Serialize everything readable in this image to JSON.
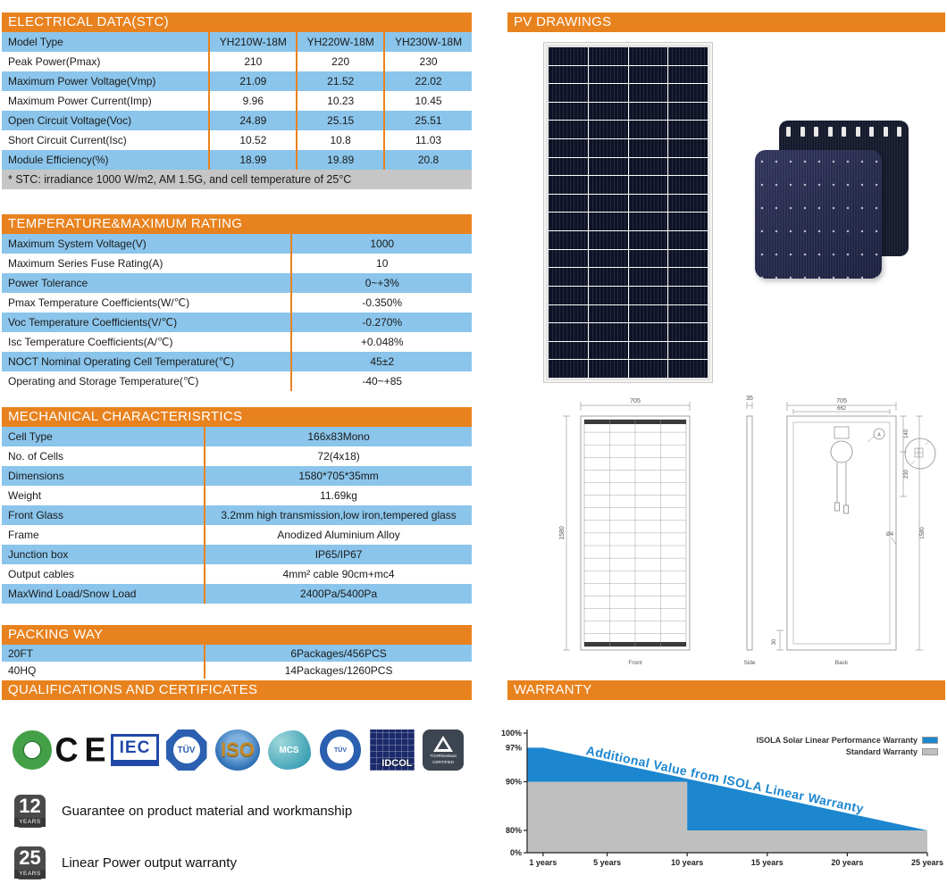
{
  "sections": {
    "electrical": {
      "title": "ELECTRICAL DATA(STC)",
      "rows": [
        [
          "Model Type",
          "YH210W-18M",
          "YH220W-18M",
          "YH230W-18M"
        ],
        [
          "Peak Power(Pmax)",
          "210",
          "220",
          "230"
        ],
        [
          "Maximum Power Voltage(Vmp)",
          "21.09",
          "21.52",
          "22.02"
        ],
        [
          "Maximum Power Current(Imp)",
          "9.96",
          "10.23",
          "10.45"
        ],
        [
          "Open Circuit Voltage(Voc)",
          "24.89",
          "25.15",
          "25.51"
        ],
        [
          "Short Circuit Current(Isc)",
          "10.52",
          "10.8",
          "11.03"
        ],
        [
          "Module Efficiency(%)",
          "18.99",
          "19.89",
          "20.8"
        ]
      ],
      "note": "* STC:  irradiance 1000 W/m2, AM 1.5G, and cell temperature of 25°C"
    },
    "temperature": {
      "title": "TEMPERATURE&MAXIMUM RATING",
      "rows": [
        [
          "Maximum System Voltage(V)",
          "1000"
        ],
        [
          "Maximum Series Fuse Rating(A)",
          "10"
        ],
        [
          "Power Tolerance",
          "0~+3%"
        ],
        [
          "Pmax Temperature Coefficients(W/℃)",
          "-0.350%"
        ],
        [
          "Voc Temperature Coefficients(V/℃)",
          "-0.270%"
        ],
        [
          "Isc Temperature Coefficients(A/℃)",
          "+0.048%"
        ],
        [
          "NOCT Nominal Operating Cell Temperature(℃)",
          "45±2"
        ],
        [
          "Operating and Storage Temperature(℃)",
          "-40~+85"
        ]
      ]
    },
    "mechanical": {
      "title": "MECHANICAL CHARACTERISRTICS",
      "rows": [
        [
          "Cell Type",
          "166x83Mono"
        ],
        [
          "No. of Cells",
          "72(4x18)"
        ],
        [
          "Dimensions",
          "1580*705*35mm"
        ],
        [
          "Weight",
          "11.69kg"
        ],
        [
          "Front Glass",
          "3.2mm high transmission,low iron,tempered glass"
        ],
        [
          "Frame",
          "Anodized Aluminium Alloy"
        ],
        [
          "Junction box",
          "IP65/IP67"
        ],
        [
          "Output cables",
          "4mm² cable 90cm+mc4"
        ],
        [
          "MaxWind Load/Snow Load",
          "2400Pa/5400Pa"
        ]
      ]
    },
    "packing": {
      "title": "PACKING WAY",
      "rows": [
        [
          "20FT",
          "6Packages/456PCS"
        ],
        [
          "40HQ",
          "14Packages/1260PCS"
        ]
      ]
    },
    "qualifications": {
      "title": "QUALIFICATIONS AND CERTIFICATES",
      "logos": {
        "ce": "CE",
        "iec": "IEC",
        "tuv": "TÜV",
        "iso": "ISO",
        "mcs": "MCS",
        "tuv2": "TÜV",
        "idcol": "IDCOL",
        "tuv_rheinland_line1": "TÜVRheinland",
        "tuv_rheinland_line2": "CERTIFIED"
      }
    },
    "warranty_badges": [
      {
        "years": "12",
        "unit": "YEARS",
        "text": "Guarantee on product material and workmanship"
      },
      {
        "years": "25",
        "unit": "YEARS",
        "text": "Linear Power output warranty"
      }
    ],
    "pv_drawings": {
      "title": "PV DRAWINGS",
      "front_label": "Front",
      "side_label": "Side",
      "back_label": "Back",
      "front_width": "705",
      "front_height": "1580",
      "side_thickness": "35",
      "back_width": "705",
      "back_inner_width": "662",
      "jb_offset": "140",
      "cable_offset": "230",
      "back_height": "1580",
      "bottom_offset": "30",
      "hole": "Ø4",
      "detail_marker": "A"
    },
    "warranty": {
      "title": "WARRANTY"
    }
  },
  "chart_data": {
    "type": "area",
    "title": "Additional Value from ISOLA Linear Warranty",
    "xlabel": "",
    "ylabel": "",
    "xlim": [
      0,
      25
    ],
    "ylim": [
      0,
      100
    ],
    "y_scale_note": "axis compressed below 80%",
    "x_tick_values": [
      1,
      5,
      10,
      15,
      20,
      25
    ],
    "x_ticks": [
      "1 years",
      "5 years",
      "10 years",
      "15 years",
      "20 years",
      "25 years"
    ],
    "y_tick_values": [
      0,
      80,
      90,
      100
    ],
    "y_ticks": [
      "0%",
      "80%",
      "90%",
      "100%"
    ],
    "y_extra_label": {
      "text": "97%",
      "value": 97,
      "color": "#1C86CF"
    },
    "legend_position": "top-right",
    "series": [
      {
        "name": "Standard Warranty",
        "color": "#BFBFBF",
        "polygon": [
          [
            0,
            90
          ],
          [
            10,
            90
          ],
          [
            10,
            80
          ],
          [
            25,
            80
          ],
          [
            25,
            0
          ],
          [
            0,
            0
          ]
        ],
        "description": "step: 90% for years 0-10, 80% for years 10-25"
      },
      {
        "name": "ISOLA Solar Linear Performance Warranty",
        "color": "#1C86CF",
        "polygon": [
          [
            0,
            97
          ],
          [
            1,
            97
          ],
          [
            25,
            80
          ],
          [
            10,
            80
          ],
          [
            10,
            90
          ],
          [
            0,
            90
          ]
        ],
        "description": "linear: 97% at year 1 declining to 80% at year 25"
      }
    ]
  },
  "colors": {
    "header_orange": "#E8821E",
    "row_blue": "#8BC5EB",
    "note_gray": "#C6C6C6",
    "chart_blue": "#1C86CF",
    "chart_gray": "#BFBFBF"
  }
}
